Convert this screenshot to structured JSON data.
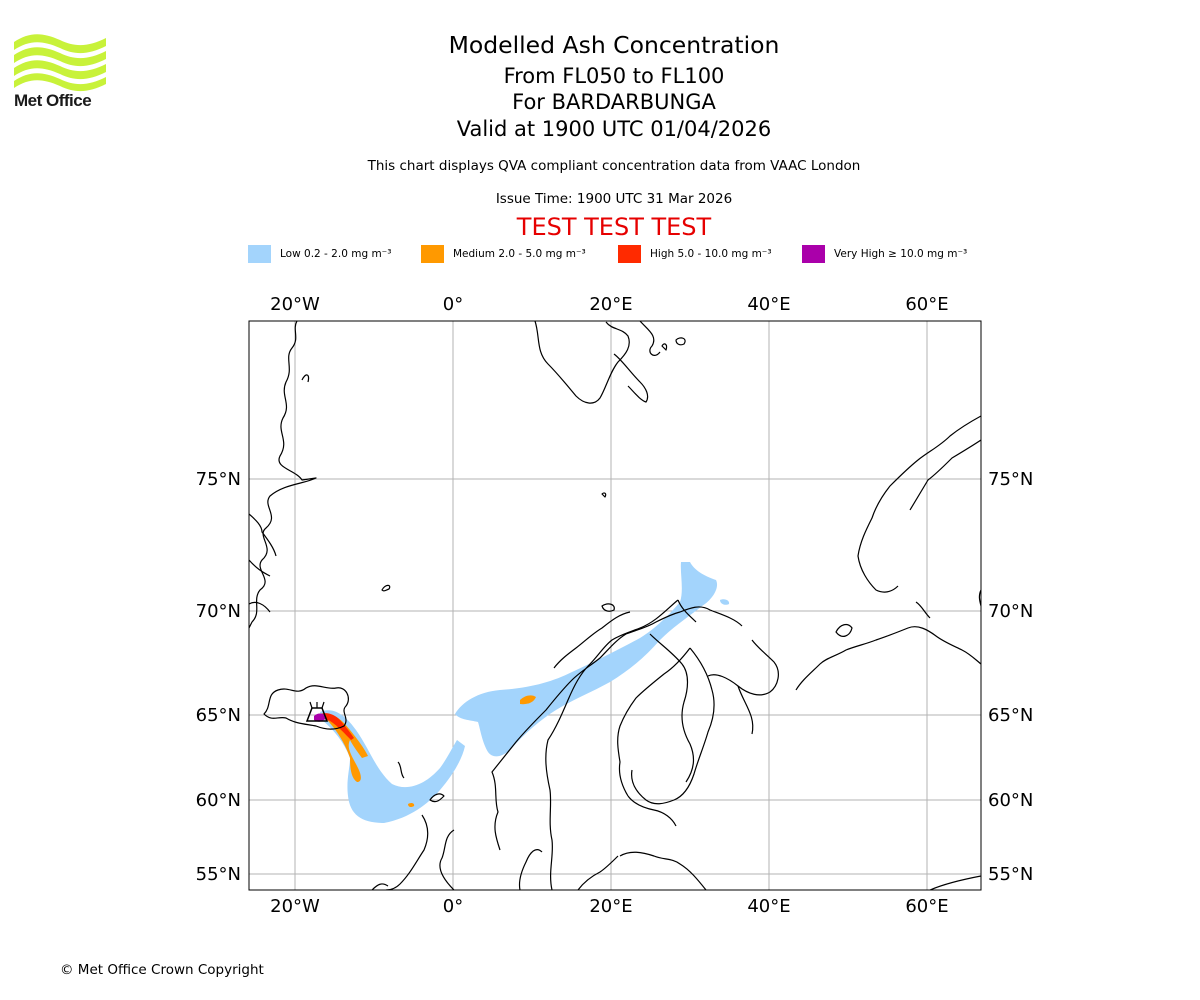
{
  "logo": {
    "brand": "Met Office",
    "colors": {
      "waves": "#c8f23a",
      "text": "#1a1a1a"
    }
  },
  "title": {
    "main": "Modelled Ash Concentration",
    "levels": "From FL050 to FL100",
    "volcano": "For BARDARBUNGA",
    "valid": "Valid at 1900 UTC 01/04/2026",
    "note": "This chart displays QVA compliant concentration data from VAAC London",
    "issue": "Issue Time: 1900 UTC 31 Mar 2026",
    "test_banner": "TEST TEST TEST"
  },
  "legend": [
    {
      "label": "Low 0.2 - 2.0 mg m⁻³",
      "color": "#a3d4fc"
    },
    {
      "label": "Medium 2.0 - 5.0 mg m⁻³",
      "color": "#ff9900"
    },
    {
      "label": "High 5.0 - 10.0 mg m⁻³",
      "color": "#ff2a00"
    },
    {
      "label": "Very High ≥ 10.0 mg m⁻³",
      "color": "#aa00aa"
    }
  ],
  "map": {
    "lon_ticks": [
      "20°W",
      "0°",
      "20°E",
      "40°E",
      "60°E"
    ],
    "lat_ticks": [
      "75°N",
      "70°N",
      "65°N",
      "60°N",
      "55°N"
    ],
    "gridline_color": "#b3b3b3"
  },
  "footer": {
    "copyright": "© Met Office Crown Copyright"
  }
}
